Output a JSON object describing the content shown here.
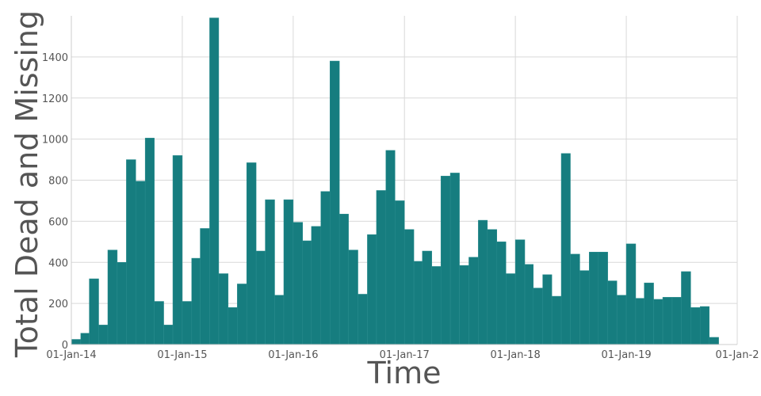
{
  "chart_data": {
    "type": "bar",
    "title": "",
    "xlabel": "Time",
    "ylabel": "Total Dead and Missing",
    "ylim": [
      0,
      1600
    ],
    "y_ticks": [
      0,
      200,
      400,
      600,
      800,
      1000,
      1200,
      1400
    ],
    "x_range": [
      "2014-01-01",
      "2020-01-01"
    ],
    "x_ticks": [
      {
        "date": "2014-01-01",
        "label": "01-Jan-14"
      },
      {
        "date": "2015-01-01",
        "label": "01-Jan-15"
      },
      {
        "date": "2016-01-01",
        "label": "01-Jan-16"
      },
      {
        "date": "2017-01-01",
        "label": "01-Jan-17"
      },
      {
        "date": "2018-01-01",
        "label": "01-Jan-18"
      },
      {
        "date": "2019-01-01",
        "label": "01-Jan-19"
      },
      {
        "date": "2020-01-01",
        "label": "01-Jan-2"
      }
    ],
    "grid": true,
    "bar_color": "#167d7f",
    "bin_start": "2014-01-01",
    "bin_unit": "month",
    "values": [
      25,
      55,
      320,
      95,
      460,
      400,
      900,
      795,
      1005,
      210,
      95,
      920,
      210,
      420,
      565,
      1590,
      345,
      180,
      295,
      885,
      455,
      705,
      240,
      705,
      595,
      505,
      575,
      745,
      1380,
      635,
      460,
      245,
      535,
      750,
      945,
      700,
      560,
      405,
      455,
      380,
      820,
      835,
      385,
      425,
      605,
      560,
      500,
      345,
      510,
      390,
      275,
      340,
      235,
      930,
      440,
      360,
      450,
      450,
      310,
      240,
      490,
      225,
      300,
      220,
      230,
      230,
      355,
      180,
      185,
      35
    ]
  }
}
